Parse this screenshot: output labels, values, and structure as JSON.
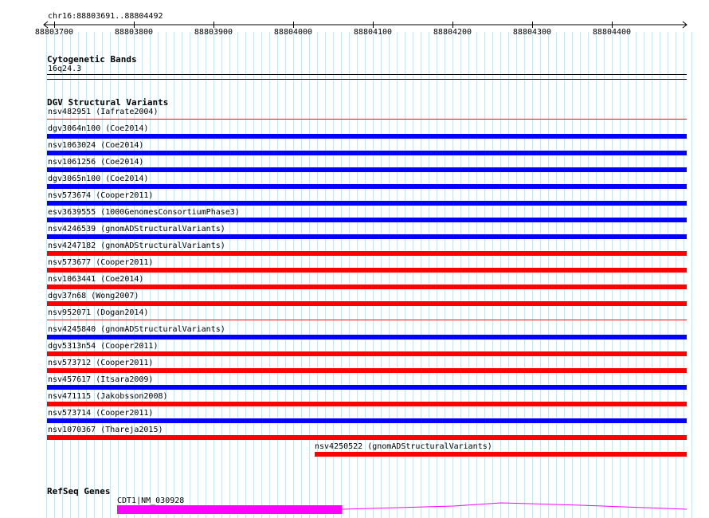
{
  "ruler": {
    "location": "chr16:88803691..88804492",
    "ticks": [
      "88803700",
      "88803800",
      "88803900",
      "88804000",
      "88804100",
      "88804200",
      "88804300",
      "88804400"
    ]
  },
  "cytoband": {
    "title": "Cytogenetic Bands",
    "band": "16q24.3"
  },
  "dgv": {
    "title": "DGV Structural Variants",
    "colors": {
      "loss": "#ff0000",
      "gain": "#0000ff"
    },
    "items": [
      {
        "label": "nsv482951 (Iafrate2004)",
        "color": "loss",
        "thin": true
      },
      {
        "label": "dgv3064n100 (Coe2014)",
        "color": "gain"
      },
      {
        "label": "nsv1063024 (Coe2014)",
        "color": "gain"
      },
      {
        "label": "nsv1061256 (Coe2014)",
        "color": "gain"
      },
      {
        "label": "dgv3065n100 (Coe2014)",
        "color": "gain"
      },
      {
        "label": "nsv573674 (Cooper2011)",
        "color": "gain"
      },
      {
        "label": "esv3639555 (1000GenomesConsortiumPhase3)",
        "color": "gain"
      },
      {
        "label": "nsv4246539 (gnomADStructuralVariants)",
        "color": "gain"
      },
      {
        "label": "nsv4247182 (gnomADStructuralVariants)",
        "color": "loss"
      },
      {
        "label": "nsv573677 (Cooper2011)",
        "color": "loss"
      },
      {
        "label": "nsv1063441 (Coe2014)",
        "color": "loss"
      },
      {
        "label": "dgv37n68 (Wong2007)",
        "color": "loss"
      },
      {
        "label": "nsv952071 (Dogan2014)",
        "color": "loss",
        "thin": true
      },
      {
        "label": "nsv4245840 (gnomADStructuralVariants)",
        "color": "gain"
      },
      {
        "label": "dgv5313n54 (Cooper2011)",
        "color": "loss"
      },
      {
        "label": "nsv573712 (Cooper2011)",
        "color": "loss"
      },
      {
        "label": "nsv457617 (Itsara2009)",
        "color": "gain"
      },
      {
        "label": "nsv471115 (Jakobsson2008)",
        "color": "loss"
      },
      {
        "label": "nsv573714 (Cooper2011)",
        "color": "gain"
      },
      {
        "label": "nsv1070367 (Thareja2015)",
        "color": "loss"
      },
      {
        "label": "nsv4250522 (gnomADStructuralVariants)",
        "color": "loss",
        "partial": true
      }
    ]
  },
  "refseq": {
    "title": "RefSeq Genes",
    "gene_label": "CDT1|NM_030928",
    "color": "#ff00ff"
  }
}
